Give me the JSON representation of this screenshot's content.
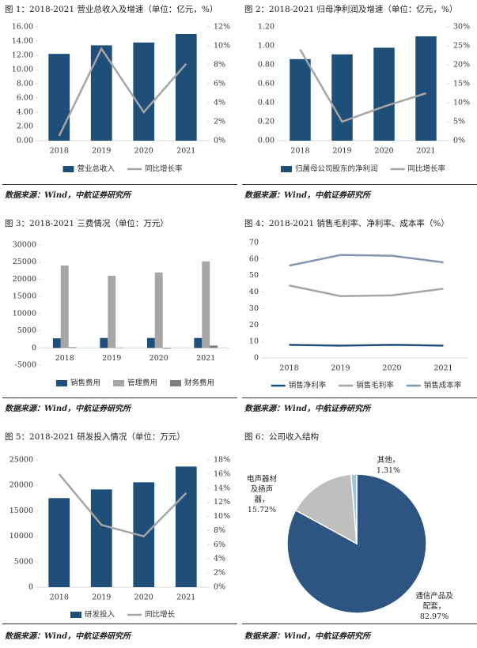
{
  "chart_data": [
    {
      "type": "bar",
      "title": "图 1：2018-2021 营业总收入及增速（单位：亿元，%）",
      "source": "数据来源：Wind，中航证券研究所",
      "categories": [
        "2018",
        "2019",
        "2020",
        "2021"
      ],
      "series": [
        {
          "name": "营业总收入",
          "type": "bar",
          "color": "#1f4e79",
          "values": [
            12.2,
            13.4,
            13.8,
            15.0
          ]
        },
        {
          "name": "同比增长率",
          "type": "line",
          "axis": "y2",
          "color": "#a6a6a6",
          "values": [
            0.5,
            9.7,
            3.0,
            8.1
          ]
        }
      ],
      "ylim": [
        0,
        16
      ],
      "yticks": [
        {
          "value": 0,
          "label": "0.00"
        },
        {
          "value": 2,
          "label": "2.00"
        },
        {
          "value": 4,
          "label": "4.00"
        },
        {
          "value": 6,
          "label": "6.00"
        },
        {
          "value": 8,
          "label": "8.00"
        },
        {
          "value": 10,
          "label": "10.00"
        },
        {
          "value": 12,
          "label": "12.00"
        },
        {
          "value": 14,
          "label": "14.00"
        },
        {
          "value": 16,
          "label": "16.00"
        }
      ],
      "y2lim": [
        0,
        12
      ],
      "y2ticks": [
        {
          "value": 0,
          "label": "0%"
        },
        {
          "value": 2,
          "label": "2%"
        },
        {
          "value": 4,
          "label": "4%"
        },
        {
          "value": 6,
          "label": "6%"
        },
        {
          "value": 8,
          "label": "8%"
        },
        {
          "value": 10,
          "label": "10%"
        },
        {
          "value": 12,
          "label": "12%"
        }
      ],
      "legend": "bottom"
    },
    {
      "type": "bar",
      "title": "图 2：2018-2021 归母净利润及增速（单位：亿元，%）",
      "source": "数据来源：Wind，中航证券研究所",
      "categories": [
        "2018",
        "2019",
        "2020",
        "2021"
      ],
      "series": [
        {
          "name": "归属母公司股东的净利润",
          "type": "bar",
          "color": "#1f4e79",
          "values": [
            0.86,
            0.91,
            0.98,
            1.1
          ]
        },
        {
          "name": "同比增长率",
          "type": "line",
          "axis": "y2",
          "color": "#a6a6a6",
          "values": [
            24,
            5,
            9,
            12.5
          ]
        }
      ],
      "ylim": [
        0,
        1.2
      ],
      "yticks": [
        {
          "value": 0,
          "label": "0.00"
        },
        {
          "value": 0.2,
          "label": "0.20"
        },
        {
          "value": 0.4,
          "label": "0.40"
        },
        {
          "value": 0.6,
          "label": "0.60"
        },
        {
          "value": 0.8,
          "label": "0.80"
        },
        {
          "value": 1.0,
          "label": "1.00"
        },
        {
          "value": 1.2,
          "label": "1.20"
        }
      ],
      "y2lim": [
        0,
        30
      ],
      "y2ticks": [
        {
          "value": 0,
          "label": "0%"
        },
        {
          "value": 5,
          "label": "5%"
        },
        {
          "value": 10,
          "label": "10%"
        },
        {
          "value": 15,
          "label": "15%"
        },
        {
          "value": 20,
          "label": "20%"
        },
        {
          "value": 25,
          "label": "25%"
        },
        {
          "value": 30,
          "label": "30%"
        }
      ],
      "legend": "bottom"
    },
    {
      "type": "bar",
      "title": "图 3：2018-2021 三费情况（单位：万元）",
      "source": "数据来源：Wind，中航证券研究所",
      "categories": [
        "2018",
        "2019",
        "2020",
        "2021"
      ],
      "series": [
        {
          "name": "销售费用",
          "color": "#1f4e79",
          "values": [
            2800,
            2900,
            2900,
            2900
          ]
        },
        {
          "name": "管理费用",
          "color": "#a6a6a6",
          "values": [
            24000,
            21000,
            22000,
            25200
          ]
        },
        {
          "name": "财务费用",
          "color": "#7f7f7f",
          "values": [
            200,
            100,
            -200,
            700
          ]
        }
      ],
      "ylim": [
        -5000,
        30000
      ],
      "yticks": [
        -5000,
        0,
        5000,
        10000,
        15000,
        20000,
        25000,
        30000
      ],
      "legend": "bottom"
    },
    {
      "type": "line",
      "title": "图 4：2018-2021 销售毛利率、净利率、成本率（%）",
      "source": "数据来源：Wind，中航证券研究所",
      "categories": [
        "2018",
        "2019",
        "2020",
        "2021"
      ],
      "series": [
        {
          "name": "销售净利率",
          "color": "#1f4e79",
          "values": [
            8,
            7.5,
            8,
            7.5
          ]
        },
        {
          "name": "销售毛利率",
          "color": "#a6a6a6",
          "values": [
            44,
            37.5,
            38,
            42
          ]
        },
        {
          "name": "销售成本率",
          "color": "#8497b0",
          "values": [
            56,
            62.5,
            62,
            58
          ]
        }
      ],
      "ylim": [
        0,
        70
      ],
      "yticks": [
        0,
        10,
        20,
        30,
        40,
        50,
        60,
        70
      ],
      "legend": "bottom"
    },
    {
      "type": "bar",
      "title": "图 5：2018-2021 研发投入情况（单位：万元）",
      "source": "数据来源：Wind，中航证券研究所",
      "categories": [
        "2018",
        "2019",
        "2020",
        "2021"
      ],
      "series": [
        {
          "name": "研发投入",
          "type": "bar",
          "color": "#1f4e79",
          "values": [
            17500,
            19200,
            20600,
            23700
          ]
        },
        {
          "name": "同比增长",
          "type": "line",
          "axis": "y2",
          "color": "#a6a6a6",
          "values": [
            16,
            8.8,
            7.2,
            13.3
          ]
        }
      ],
      "ylim": [
        0,
        25000
      ],
      "yticks": [
        0,
        5000,
        10000,
        15000,
        20000,
        25000
      ],
      "y2lim": [
        0,
        18
      ],
      "y2ticks": [
        {
          "value": 0,
          "label": "0%"
        },
        {
          "value": 2,
          "label": "2%"
        },
        {
          "value": 4,
          "label": "4%"
        },
        {
          "value": 6,
          "label": "6%"
        },
        {
          "value": 8,
          "label": "8%"
        },
        {
          "value": 10,
          "label": "10%"
        },
        {
          "value": 12,
          "label": "12%"
        },
        {
          "value": 14,
          "label": "14%"
        },
        {
          "value": 16,
          "label": "16%"
        },
        {
          "value": 18,
          "label": "18%"
        }
      ],
      "legend": "bottom"
    },
    {
      "type": "pie",
      "title": "图 6：公司收入结构",
      "source": "数据来源：Wind，中航证券研究所",
      "categories": [
        "通信产品及配套，",
        "电声器材及扬声器，",
        "其他，"
      ],
      "values": [
        82.97,
        15.72,
        1.31
      ],
      "value_labels": [
        "82.97%",
        "15.72%",
        "1.31%"
      ],
      "colors": [
        "#2e5582",
        "#bfbfbf",
        "#9dc3e6"
      ]
    }
  ]
}
